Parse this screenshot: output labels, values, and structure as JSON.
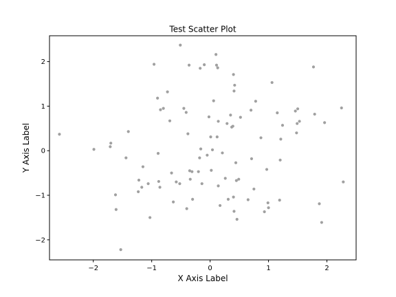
{
  "chart_data": {
    "type": "scatter",
    "title": "Test Scatter Plot",
    "xlabel": "X Axis Label",
    "ylabel": "Y Axis Label",
    "xlim": [
      -2.75,
      2.5
    ],
    "ylim": [
      -2.45,
      2.58
    ],
    "xticks": [
      -2,
      -1,
      0,
      1,
      2
    ],
    "yticks": [
      -2,
      -1,
      0,
      1,
      2
    ],
    "grid": false,
    "marker_color": "#a0a0a0",
    "points": [
      [
        -2.58,
        0.37
      ],
      [
        -1.99,
        0.03
      ],
      [
        -1.7,
        0.17
      ],
      [
        -1.71,
        0.09
      ],
      [
        -1.62,
        -0.99
      ],
      [
        -1.61,
        -1.32
      ],
      [
        -1.53,
        -2.22
      ],
      [
        -1.44,
        -0.16
      ],
      [
        -1.4,
        0.43
      ],
      [
        -1.23,
        -0.92
      ],
      [
        -1.22,
        -0.66
      ],
      [
        -1.17,
        -0.82
      ],
      [
        -1.15,
        -0.36
      ],
      [
        -1.06,
        -0.74
      ],
      [
        -1.03,
        -1.5
      ],
      [
        -0.96,
        1.94
      ],
      [
        -0.9,
        1.18
      ],
      [
        -0.89,
        -0.06
      ],
      [
        -0.88,
        -0.69
      ],
      [
        -0.86,
        -0.82
      ],
      [
        -0.85,
        0.92
      ],
      [
        -0.8,
        0.95
      ],
      [
        -0.73,
        1.32
      ],
      [
        -0.69,
        0.67
      ],
      [
        -0.66,
        -0.5
      ],
      [
        -0.63,
        -1.15
      ],
      [
        -0.58,
        -0.7
      ],
      [
        -0.52,
        -0.74
      ],
      [
        -0.51,
        2.37
      ],
      [
        -0.45,
        0.95
      ],
      [
        -0.41,
        0.86
      ],
      [
        -0.4,
        -1.3
      ],
      [
        -0.38,
        0.38
      ],
      [
        -0.36,
        1.92
      ],
      [
        -0.35,
        -0.45
      ],
      [
        -0.34,
        -0.64
      ],
      [
        -0.31,
        -0.47
      ],
      [
        -0.3,
        -1.09
      ],
      [
        -0.2,
        -0.47
      ],
      [
        -0.18,
        -0.16
      ],
      [
        -0.17,
        1.85
      ],
      [
        -0.16,
        0.04
      ],
      [
        -0.14,
        -0.74
      ],
      [
        -0.1,
        1.93
      ],
      [
        -0.05,
        -0.1
      ],
      [
        -0.02,
        0.76
      ],
      [
        0.01,
        0.31
      ],
      [
        0.02,
        -0.44
      ],
      [
        0.04,
        0.02
      ],
      [
        0.06,
        1.12
      ],
      [
        0.1,
        2.16
      ],
      [
        0.11,
        1.92
      ],
      [
        0.12,
        0.31
      ],
      [
        0.13,
        1.86
      ],
      [
        0.14,
        0.66
      ],
      [
        0.14,
        -0.79
      ],
      [
        0.17,
        -1.23
      ],
      [
        0.21,
        -0.05
      ],
      [
        0.26,
        -0.62
      ],
      [
        0.29,
        0.61
      ],
      [
        0.31,
        -1.09
      ],
      [
        0.35,
        0.8
      ],
      [
        0.37,
        0.53
      ],
      [
        0.39,
        0.55
      ],
      [
        0.4,
        1.71
      ],
      [
        0.4,
        -1.04
      ],
      [
        0.41,
        -1.36
      ],
      [
        0.41,
        1.34
      ],
      [
        0.42,
        1.47
      ],
      [
        0.44,
        -0.27
      ],
      [
        0.45,
        -0.67
      ],
      [
        0.46,
        -1.54
      ],
      [
        0.49,
        -0.64
      ],
      [
        0.52,
        0.75
      ],
      [
        0.65,
        -1.1
      ],
      [
        0.7,
        0.91
      ],
      [
        0.71,
        -0.18
      ],
      [
        0.75,
        -0.86
      ],
      [
        0.78,
        1.11
      ],
      [
        0.87,
        0.29
      ],
      [
        0.93,
        -1.37
      ],
      [
        0.97,
        -0.42
      ],
      [
        0.99,
        -1.17
      ],
      [
        1.0,
        -1.28
      ],
      [
        1.06,
        1.53
      ],
      [
        1.15,
        0.85
      ],
      [
        1.19,
        -1.11
      ],
      [
        1.2,
        -0.21
      ],
      [
        1.21,
        0.26
      ],
      [
        1.24,
        0.57
      ],
      [
        1.46,
        0.89
      ],
      [
        1.48,
        0.4
      ],
      [
        1.49,
        0.61
      ],
      [
        1.5,
        0.94
      ],
      [
        1.53,
        0.66
      ],
      [
        1.77,
        1.88
      ],
      [
        1.79,
        0.82
      ],
      [
        1.87,
        -1.19
      ],
      [
        1.91,
        -1.61
      ],
      [
        1.96,
        0.63
      ],
      [
        2.25,
        0.96
      ],
      [
        2.28,
        -0.7
      ]
    ]
  }
}
